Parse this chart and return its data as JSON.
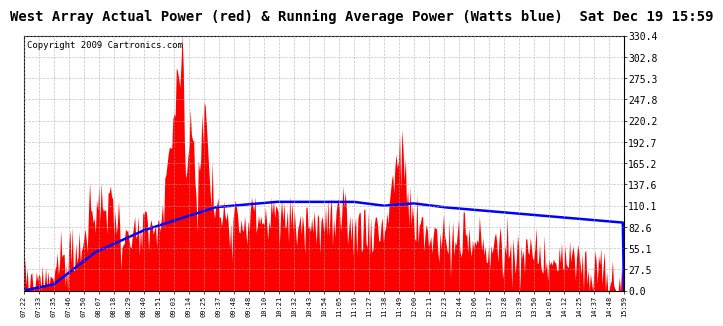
{
  "title": "West Array Actual Power (red) & Running Average Power (Watts blue)  Sat Dec 19 15:59",
  "copyright": "Copyright 2009 Cartronics.com",
  "yticks": [
    0.0,
    27.5,
    55.1,
    82.6,
    110.1,
    137.6,
    165.2,
    192.7,
    220.2,
    247.8,
    275.3,
    302.8,
    330.4
  ],
  "ylim": [
    0,
    330.4
  ],
  "x_labels": [
    "07:22",
    "07:33",
    "07:35",
    "07:46",
    "07:50",
    "08:07",
    "08:18",
    "08:29",
    "08:40",
    "08:51",
    "09:03",
    "09:14",
    "09:25",
    "09:37",
    "09:48",
    "09:48",
    "10:10",
    "10:21",
    "10:32",
    "10:43",
    "10:54",
    "11:05",
    "11:16",
    "11:27",
    "11:38",
    "11:49",
    "12:00",
    "12:11",
    "12:23",
    "12:44",
    "13:06",
    "13:17",
    "13:28",
    "13:39",
    "13:50",
    "14:01",
    "14:12",
    "14:25",
    "14:37",
    "14:48",
    "15:59"
  ],
  "red_color": "#FF0000",
  "blue_color": "#0000FF",
  "background_color": "#FFFFFF",
  "grid_color": "#AAAAAA",
  "title_fontsize": 10,
  "copyright_fontsize": 6.5
}
